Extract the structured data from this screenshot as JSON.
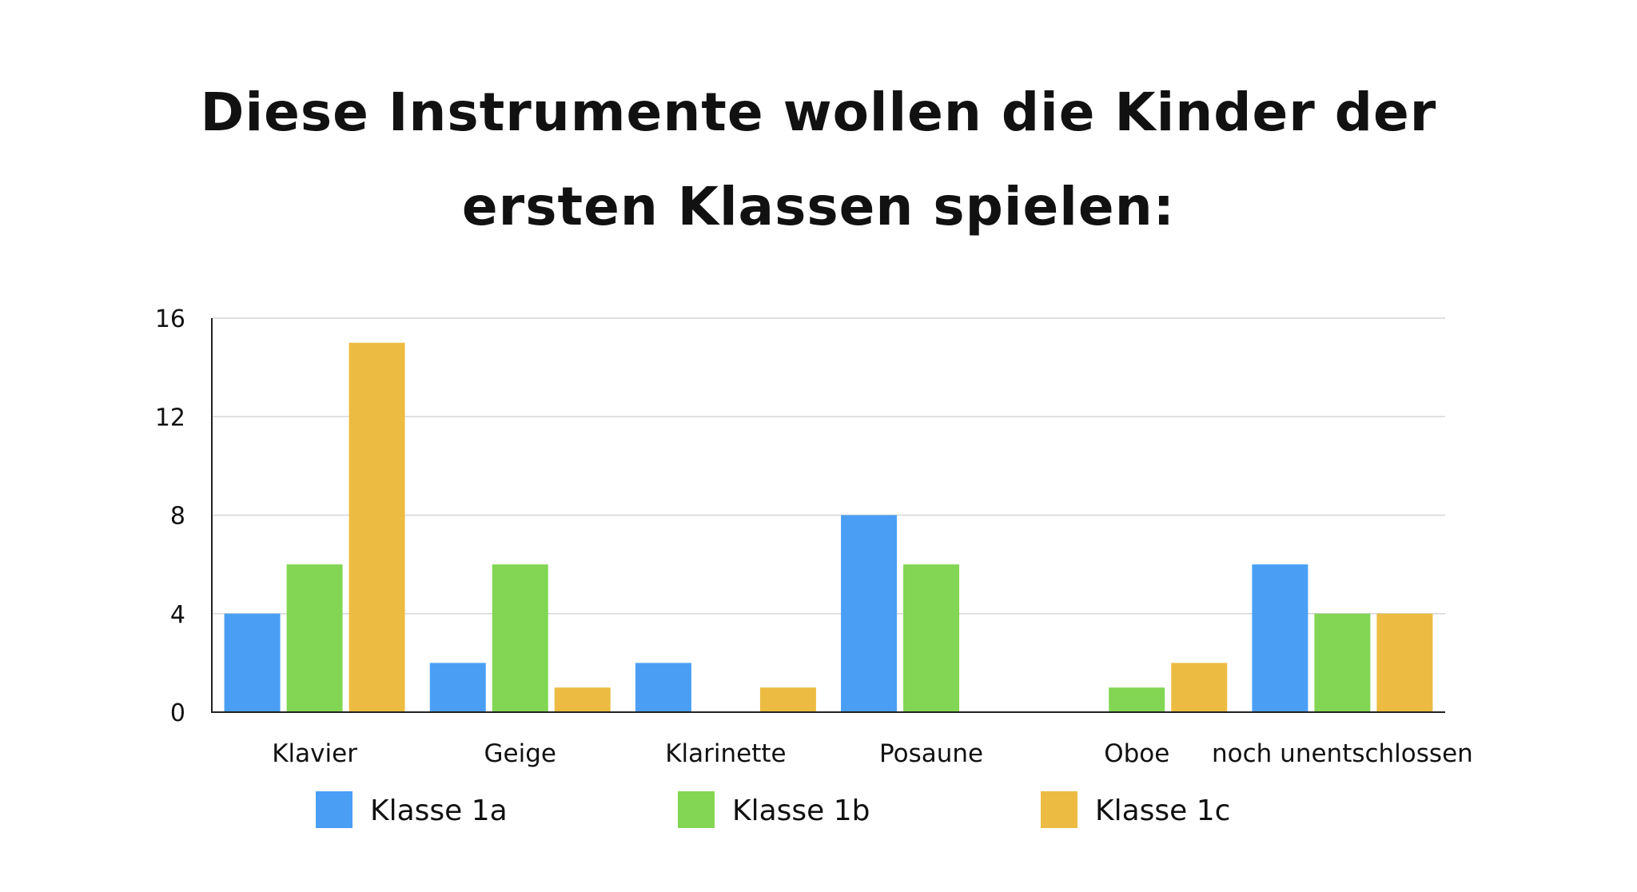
{
  "chart_data": {
    "type": "bar",
    "title": "Diese Instrumente wollen die Kinder der ersten Klassen spielen:",
    "categories": [
      "Klavier",
      "Geige",
      "Klarinette",
      "Posaune",
      "Oboe",
      "noch unentschlossen"
    ],
    "series": [
      {
        "name": "Klasse 1a",
        "color": "#4a9ff5",
        "values": [
          4,
          2,
          2,
          8,
          0,
          6
        ]
      },
      {
        "name": "Klasse 1b",
        "color": "#82d653",
        "values": [
          6,
          6,
          0,
          6,
          1,
          4
        ]
      },
      {
        "name": "Klasse 1c",
        "color": "#ecbc42",
        "values": [
          15,
          1,
          1,
          0,
          2,
          4
        ]
      }
    ],
    "ylim": [
      0,
      16
    ],
    "yticks": [
      0,
      4,
      8,
      12,
      16
    ],
    "xlabel": "",
    "ylabel": "",
    "grid": true,
    "legend_position": "bottom"
  }
}
